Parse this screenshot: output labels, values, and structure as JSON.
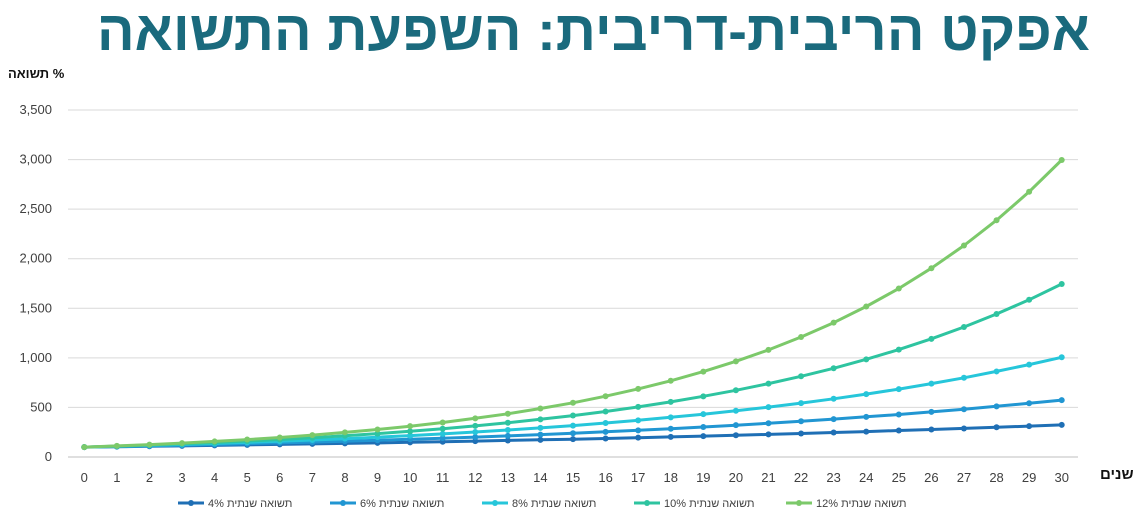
{
  "title": "אפקט הריבית-דריבית: השפעת התשואה",
  "chart_data": {
    "type": "line",
    "title": "אפקט הריבית-דריבית: השפעת התשואה",
    "xlabel": "שנים",
    "ylabel": "% תשואה",
    "x": [
      0,
      1,
      2,
      3,
      4,
      5,
      6,
      7,
      8,
      9,
      10,
      11,
      12,
      13,
      14,
      15,
      16,
      17,
      18,
      19,
      20,
      21,
      22,
      23,
      24,
      25,
      26,
      27,
      28,
      29,
      30
    ],
    "ylim": [
      0,
      3500
    ],
    "yticks": [
      0,
      500,
      1000,
      1500,
      2000,
      2500,
      3000,
      3500
    ],
    "ytick_labels": [
      "0",
      "500",
      "1,000",
      "1,500",
      "2,000",
      "2,500",
      "3,000",
      "3,500"
    ],
    "grid": true,
    "legend_position": "bottom",
    "series": [
      {
        "name": "תשואה שנתית 4%",
        "color": "#1f6fb5",
        "values": [
          100,
          104,
          108,
          112,
          117,
          122,
          127,
          132,
          137,
          142,
          148,
          154,
          160,
          167,
          173,
          180,
          187,
          195,
          203,
          211,
          219,
          228,
          237,
          247,
          256,
          267,
          277,
          288,
          300,
          312,
          324
        ]
      },
      {
        "name": "תשואה שנתית 6%",
        "color": "#2196d2",
        "values": [
          100,
          106,
          112,
          119,
          126,
          134,
          142,
          150,
          159,
          169,
          179,
          190,
          201,
          213,
          226,
          240,
          254,
          269,
          285,
          303,
          321,
          340,
          360,
          382,
          405,
          429,
          455,
          482,
          511,
          542,
          574
        ]
      },
      {
        "name": "תשואה שנתית 8%",
        "color": "#26c6da",
        "values": [
          100,
          108,
          117,
          126,
          136,
          147,
          159,
          171,
          185,
          200,
          216,
          233,
          252,
          272,
          294,
          317,
          343,
          370,
          400,
          432,
          466,
          503,
          544,
          587,
          634,
          685,
          740,
          799,
          863,
          932,
          1006
        ]
      },
      {
        "name": "תשואה שנתית 10%",
        "color": "#2ec4a0",
        "values": [
          100,
          110,
          121,
          133,
          146,
          161,
          177,
          195,
          214,
          236,
          259,
          285,
          314,
          345,
          380,
          418,
          459,
          505,
          556,
          612,
          673,
          740,
          814,
          895,
          985,
          1083,
          1192,
          1311,
          1442,
          1586,
          1745
        ]
      },
      {
        "name": "תשואה שנתית 12%",
        "color": "#7cc96a",
        "values": [
          100,
          112,
          125,
          140,
          157,
          176,
          197,
          221,
          248,
          277,
          311,
          348,
          390,
          436,
          489,
          547,
          613,
          687,
          769,
          861,
          965,
          1080,
          1210,
          1355,
          1518,
          1700,
          1904,
          2133,
          2388,
          2675,
          2996
        ]
      }
    ]
  }
}
